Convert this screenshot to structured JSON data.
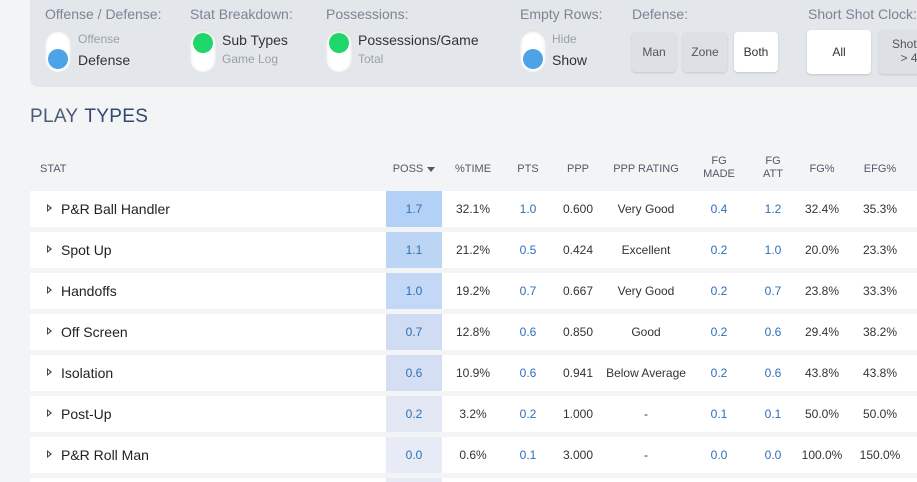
{
  "filters": {
    "offense_defense": {
      "label": "Offense / Defense:",
      "option_off": "Offense",
      "option_on": "Defense"
    },
    "stat_breakdown": {
      "label": "Stat Breakdown:",
      "option_on": "Sub Types",
      "option_off": "Game Log"
    },
    "possessions": {
      "label": "Possessions:",
      "option_on": "Possessions/Game",
      "option_off": "Total"
    },
    "empty_rows": {
      "label": "Empty Rows:",
      "option_off": "Hide",
      "option_on": "Show"
    },
    "defense": {
      "label": "Defense:",
      "buttons": [
        "Man",
        "Zone",
        "Both"
      ],
      "active": "Both"
    },
    "short_shot_clock": {
      "label": "Short Shot Clock:",
      "buttons": [
        "All",
        "Shot c",
        "> 4"
      ],
      "active": "All"
    }
  },
  "title": {
    "prefix": "PLAY",
    "main": "TYPES"
  },
  "table": {
    "headers": {
      "stat": "STAT",
      "poss": "POSS",
      "time": "%TIME",
      "pts": "PTS",
      "ppp": "PPP",
      "ppp_rating": "PPP RATING",
      "fg_made_1": "FG",
      "fg_made_2": "MADE",
      "fg_att_1": "FG",
      "fg_att_2": "ATT",
      "fg_pct": "FG%",
      "efg_pct": "EFG%"
    },
    "rows": [
      {
        "name": "P&R Ball Handler",
        "poss": "1.7",
        "time": "32.1%",
        "pts": "1.0",
        "ppp": "0.600",
        "rating": "Very Good",
        "fgm": "0.4",
        "fga": "1.2",
        "fg": "32.4%",
        "efg": "35.3%"
      },
      {
        "name": "Spot Up",
        "poss": "1.1",
        "time": "21.2%",
        "pts": "0.5",
        "ppp": "0.424",
        "rating": "Excellent",
        "fgm": "0.2",
        "fga": "1.0",
        "fg": "20.0%",
        "efg": "23.3%"
      },
      {
        "name": "Handoffs",
        "poss": "1.0",
        "time": "19.2%",
        "pts": "0.7",
        "ppp": "0.667",
        "rating": "Very Good",
        "fgm": "0.2",
        "fga": "0.7",
        "fg": "23.8%",
        "efg": "33.3%"
      },
      {
        "name": "Off Screen",
        "poss": "0.7",
        "time": "12.8%",
        "pts": "0.6",
        "ppp": "0.850",
        "rating": "Good",
        "fgm": "0.2",
        "fga": "0.6",
        "fg": "29.4%",
        "efg": "38.2%"
      },
      {
        "name": "Isolation",
        "poss": "0.6",
        "time": "10.9%",
        "pts": "0.6",
        "ppp": "0.941",
        "rating": "Below Average",
        "fgm": "0.2",
        "fga": "0.6",
        "fg": "43.8%",
        "efg": "43.8%"
      },
      {
        "name": "Post-Up",
        "poss": "0.2",
        "time": "3.2%",
        "pts": "0.2",
        "ppp": "1.000",
        "rating": "-",
        "fgm": "0.1",
        "fga": "0.1",
        "fg": "50.0%",
        "efg": "50.0%"
      },
      {
        "name": "P&R Roll Man",
        "poss": "0.0",
        "time": "0.6%",
        "pts": "0.1",
        "ppp": "3.000",
        "rating": "-",
        "fgm": "0.0",
        "fga": "0.0",
        "fg": "100.0%",
        "efg": "150.0%"
      }
    ]
  },
  "colors": {
    "poss_highlight_strong": "#b3d1f7",
    "poss_highlight_light": "#e6ebf5",
    "link": "#2f6fb8",
    "toggle_blue": "#4da3e8",
    "toggle_green": "#1fd66b"
  }
}
